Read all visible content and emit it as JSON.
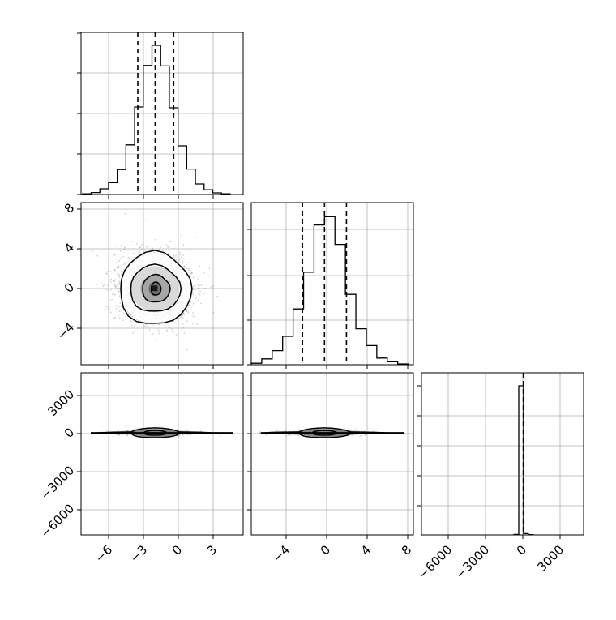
{
  "figure": {
    "type": "corner-plot",
    "colors": {
      "frame": "#000000",
      "grid": "#b0b0b0",
      "points": "#808080",
      "background": "#ffffff"
    }
  },
  "chart_data": [
    {
      "name": "hist-param-1",
      "type": "bar",
      "grid": true,
      "xlim": [
        -8,
        6
      ],
      "ylim": [
        0,
        1.0
      ],
      "bins_center": [
        -7.5,
        -6.75,
        -6.0,
        -5.25,
        -4.5,
        -3.75,
        -3.0,
        -2.25,
        -1.5,
        -0.75,
        0.0,
        0.75,
        1.5,
        2.25,
        3.0,
        3.75,
        4.5
      ],
      "values": [
        0.004,
        0.012,
        0.035,
        0.073,
        0.154,
        0.306,
        0.54,
        0.796,
        0.92,
        0.793,
        0.535,
        0.3,
        0.157,
        0.065,
        0.029,
        0.01,
        0.004
      ],
      "quantiles": [
        -3.1,
        -1.6,
        0.0
      ]
    },
    {
      "name": "hist-param-2",
      "type": "bar",
      "grid": true,
      "xlim": [
        -7,
        8.5
      ],
      "ylim": [
        0,
        1.0
      ],
      "bins_center": [
        -6.5,
        -5.5,
        -4.5,
        -3.5,
        -2.5,
        -1.5,
        -0.5,
        0.5,
        1.5,
        2.5,
        3.5,
        4.5,
        5.5,
        6.5,
        7.5
      ],
      "values": [
        0.009,
        0.036,
        0.087,
        0.175,
        0.344,
        0.571,
        0.862,
        0.913,
        0.742,
        0.434,
        0.222,
        0.118,
        0.041,
        0.018,
        0.005
      ],
      "quantiles": [
        -2.1,
        0.0,
        2.1
      ]
    },
    {
      "name": "hist-param-3",
      "type": "bar",
      "grid": true,
      "xlim": [
        -8500,
        5000
      ],
      "ylim": [
        0,
        1.0
      ],
      "bins_center": [
        -600,
        -200,
        200,
        600
      ],
      "values": [
        0.003,
        0.92,
        0.008,
        0.002
      ],
      "quantiles": [
        -20,
        0,
        20
      ]
    },
    {
      "name": "scatter-param-1-vs-2",
      "type": "scatter",
      "grid": true,
      "xlim": [
        -8,
        6
      ],
      "ylim": [
        -7.5,
        8.5
      ],
      "center": [
        -1.6,
        0.0
      ],
      "contours": [
        0.5,
        1.3,
        2.4,
        3.2
      ]
    },
    {
      "name": "scatter-param-1-vs-3",
      "type": "scatter",
      "grid": true,
      "xlim": [
        -8,
        6
      ],
      "ylim": [
        -8500,
        5000
      ],
      "center": [
        -1.6,
        0
      ]
    },
    {
      "name": "scatter-param-2-vs-3",
      "type": "scatter",
      "grid": true,
      "xlim": [
        -7,
        8.5
      ],
      "ylim": [
        -8500,
        5000
      ],
      "center": [
        0,
        0
      ]
    }
  ],
  "axes": {
    "col1_ticks": [
      "−6",
      "−3",
      "0",
      "3"
    ],
    "col2_ticks": [
      "−4",
      "0",
      "4",
      "8"
    ],
    "col3_ticks": [
      "−6000",
      "−3000",
      "0",
      "3000"
    ],
    "row2_ticks": [
      "8",
      "4",
      "0",
      "−4"
    ],
    "row3_ticks": [
      "3000",
      "0",
      "−3000",
      "−6000"
    ]
  }
}
